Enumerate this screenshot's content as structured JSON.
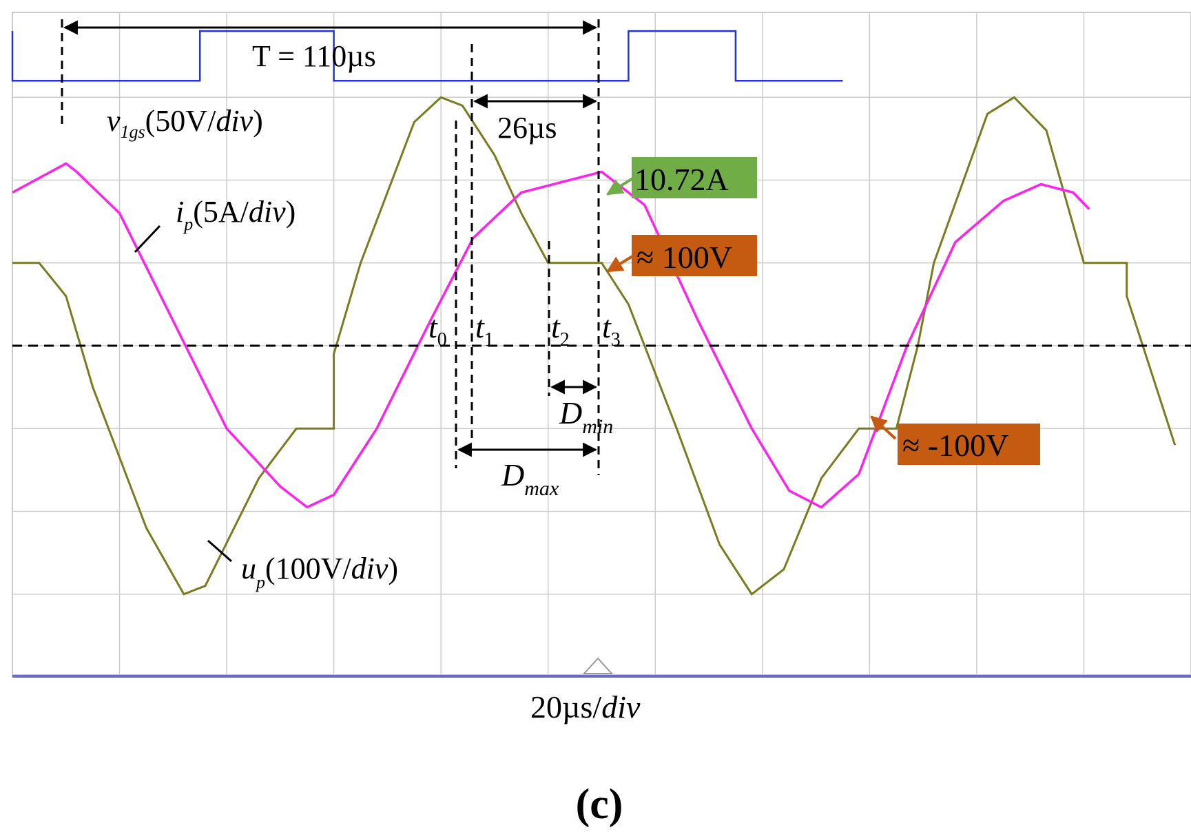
{
  "chart_data": {
    "type": "line",
    "grid": true,
    "grid_divisions": {
      "x": 10,
      "y": 8
    },
    "series": [
      {
        "name": "v_1gs",
        "color": "#2233dd",
        "points": [
          [
            -20,
            3.8
          ],
          [
            -20,
            3.2
          ],
          [
            15,
            3.2
          ],
          [
            15,
            3.8
          ],
          [
            40,
            3.8
          ],
          [
            40,
            3.2
          ],
          [
            95,
            3.2
          ],
          [
            95,
            3.8
          ],
          [
            115,
            3.8
          ],
          [
            115,
            3.2
          ],
          [
            135,
            3.2
          ]
        ]
      },
      {
        "name": "i_p",
        "color": "#ff22ee",
        "points": [
          [
            -20,
            1.85
          ],
          [
            -10,
            2.2
          ],
          [
            -8,
            2.1
          ],
          [
            0,
            1.6
          ],
          [
            10,
            0.3
          ],
          [
            20,
            -1.0
          ],
          [
            30,
            -1.7
          ],
          [
            35,
            -1.95
          ],
          [
            40,
            -1.8
          ],
          [
            48,
            -1.0
          ],
          [
            58,
            0.3
          ],
          [
            66,
            1.3
          ],
          [
            75,
            1.85
          ],
          [
            90,
            2.1
          ],
          [
            98,
            1.7
          ],
          [
            108,
            0.3
          ],
          [
            118,
            -1.0
          ],
          [
            125,
            -1.75
          ],
          [
            131,
            -1.95
          ],
          [
            138,
            -1.55
          ],
          [
            147,
            0.0
          ],
          [
            156,
            1.25
          ],
          [
            165,
            1.75
          ],
          [
            172,
            1.95
          ],
          [
            178,
            1.85
          ],
          [
            181,
            1.65
          ]
        ]
      },
      {
        "name": "u_p",
        "color": "#7a7a1f",
        "points": [
          [
            -20,
            1.0
          ],
          [
            -15,
            1.0
          ],
          [
            -10,
            0.6
          ],
          [
            -5,
            -0.5
          ],
          [
            5,
            -2.2
          ],
          [
            12,
            -3.0
          ],
          [
            16,
            -2.9
          ],
          [
            26,
            -1.6
          ],
          [
            33,
            -1.0
          ],
          [
            40,
            -1.0
          ],
          [
            40,
            -0.1
          ],
          [
            45,
            1.0
          ],
          [
            55,
            2.7
          ],
          [
            60,
            3.0
          ],
          [
            64,
            2.9
          ],
          [
            70,
            2.3
          ],
          [
            75,
            1.6
          ],
          [
            80,
            1.0
          ],
          [
            90,
            1.0
          ],
          [
            95,
            0.5
          ],
          [
            104,
            -1.0
          ],
          [
            112,
            -2.4
          ],
          [
            118,
            -3.0
          ],
          [
            124,
            -2.7
          ],
          [
            131,
            -1.6
          ],
          [
            138,
            -1.0
          ],
          [
            145,
            -1.0
          ],
          [
            149,
            0.0
          ],
          [
            152,
            1.0
          ],
          [
            162,
            2.8
          ],
          [
            167,
            3.0
          ],
          [
            173,
            2.6
          ],
          [
            180,
            1.0
          ],
          [
            188,
            1.0
          ],
          [
            188,
            0.6
          ],
          [
            197,
            -1.2
          ]
        ]
      }
    ],
    "annotations": {
      "period": "T = 110µs",
      "pulse_width": "26µs",
      "v1gs_label": {
        "main": "v",
        "sub": "1gs",
        "rest": "(50V/",
        "unit": "div",
        "close": ")"
      },
      "ip_label": {
        "main": "i",
        "sub": "p",
        "rest": "(5A/",
        "unit": "div",
        "close": ")"
      },
      "up_label": {
        "main": "u",
        "sub": "p",
        "rest": "(100V/",
        "unit": "div",
        "close": ")"
      },
      "peak_current": "10.72A",
      "plateau_pos": "≈ 100V",
      "plateau_neg": "≈ -100V",
      "t0": {
        "main": "t",
        "sub": "0"
      },
      "t1": {
        "main": "t",
        "sub": "1"
      },
      "t2": {
        "main": "t",
        "sub": "2"
      },
      "t3": {
        "main": "t",
        "sub": "3"
      },
      "dmin": {
        "main": "D",
        "sub": "min"
      },
      "dmax": {
        "main": "D",
        "sub": "max"
      },
      "timebase": {
        "value": "20µs/",
        "unit": "div"
      },
      "panel": "(c)"
    },
    "colors": {
      "grid": "#cccccc",
      "box_green": "#70ad47",
      "box_orange": "#c55a11",
      "arrow_green": "#70ad47",
      "arrow_orange": "#c55a11"
    }
  }
}
